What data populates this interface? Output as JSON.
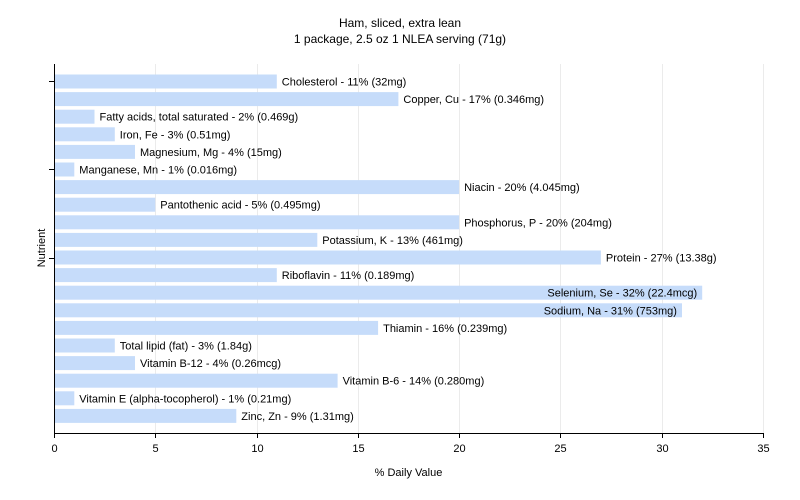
{
  "chart_data": {
    "type": "bar",
    "orientation": "horizontal",
    "title": "Ham, sliced, extra lean",
    "subtitle": "1 package, 2.5 oz 1 NLEA serving (71g)",
    "xlabel": "% Daily Value",
    "ylabel": "Nutrient",
    "xlim": [
      0,
      35
    ],
    "xticks": [
      "0",
      "5",
      "10",
      "15",
      "20",
      "25",
      "30",
      "35"
    ],
    "grid": true,
    "bar_color": "#c6dcfa",
    "gridline_color": "#ebebeb",
    "categories": [
      "Cholesterol",
      "Copper, Cu",
      "Fatty acids, total saturated",
      "Iron, Fe",
      "Magnesium, Mg",
      "Manganese, Mn",
      "Niacin",
      "Pantothenic acid",
      "Phosphorus, P",
      "Potassium, K",
      "Protein",
      "Riboflavin",
      "Selenium, Se",
      "Sodium, Na",
      "Thiamin",
      "Total lipid (fat)",
      "Vitamin B-12",
      "Vitamin B-6",
      "Vitamin E (alpha-tocopherol)",
      "Zinc, Zn"
    ],
    "values": [
      11,
      17,
      2,
      3,
      4,
      1,
      20,
      5,
      20,
      13,
      27,
      11,
      32,
      31,
      16,
      3,
      4,
      14,
      1,
      9
    ],
    "labels": [
      "Cholesterol - 11% (32mg)",
      "Copper, Cu - 17% (0.346mg)",
      "Fatty acids, total saturated - 2% (0.469g)",
      "Iron, Fe - 3% (0.51mg)",
      "Magnesium, Mg - 4% (15mg)",
      "Manganese, Mn - 1% (0.016mg)",
      "Niacin - 20% (4.045mg)",
      "Pantothenic acid - 5% (0.495mg)",
      "Phosphorus, P - 20% (204mg)",
      "Potassium, K - 13% (461mg)",
      "Protein - 27% (13.38g)",
      "Riboflavin - 11% (0.189mg)",
      "Selenium, Se - 32% (22.4mcg)",
      "Sodium, Na - 31% (753mg)",
      "Thiamin - 16% (0.239mg)",
      "Total lipid (fat) - 3% (1.84g)",
      "Vitamin B-12 - 4% (0.26mcg)",
      "Vitamin B-6 - 14% (0.280mg)",
      "Vitamin E (alpha-tocopherol) - 1% (0.21mg)",
      "Zinc, Zn - 9% (1.31mg)"
    ]
  }
}
